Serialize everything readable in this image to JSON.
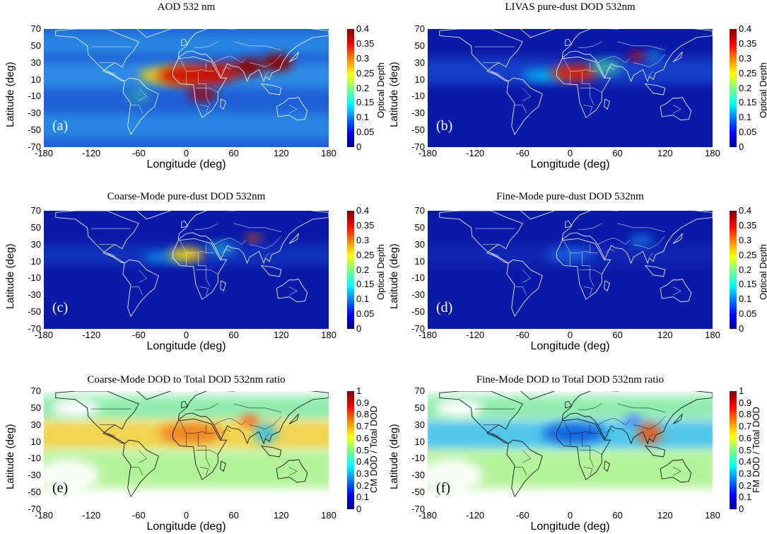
{
  "colorbar_aod": {
    "label": "Optical Depth",
    "ticks": [
      "0.4",
      "0.35",
      "0.3",
      "0.25",
      "0.2",
      "0.15",
      "0.1",
      "0.05",
      "0"
    ]
  },
  "colorbar_ratio_cm": {
    "label": "CM DOD / Total DOD",
    "ticks": [
      "1",
      "0.9",
      "0.8",
      "0.7",
      "0.6",
      "0.5",
      "0.4",
      "0.3",
      "0.2",
      "0.1",
      "0"
    ]
  },
  "colorbar_ratio_fm": {
    "label": "FM DOD / Total DOD",
    "ticks": [
      "1",
      "0.9",
      "0.8",
      "0.7",
      "0.6",
      "0.5",
      "0.4",
      "0.3",
      "0.2",
      "0.1",
      "0"
    ]
  },
  "axes": {
    "xlabel": "Longitude (deg)",
    "ylabel": "Latitude (deg)",
    "xticks": [
      "-180",
      "-120",
      "-60",
      "0",
      "60",
      "120",
      "180"
    ],
    "yticks": [
      "70",
      "50",
      "30",
      "10",
      "-10",
      "-30",
      "-50",
      "-70"
    ]
  },
  "panels": [
    {
      "title": "AOD 532 nm",
      "label": "(a)"
    },
    {
      "title": "LIVAS pure-dust DOD 532nm",
      "label": "(b)"
    },
    {
      "title": "Coarse-Mode pure-dust DOD 532nm",
      "label": "(c)"
    },
    {
      "title": "Fine-Mode pure-dust DOD 532nm",
      "label": "(d)"
    },
    {
      "title": "Coarse-Mode DOD to Total DOD 532nm ratio",
      "label": "(e)"
    },
    {
      "title": "Fine-Mode DOD to Total DOD 532nm ratio",
      "label": "(f)"
    }
  ],
  "colors": {
    "jet_low": "#00008f",
    "jet_mid": "#7fff7f",
    "jet_high": "#800000"
  }
}
